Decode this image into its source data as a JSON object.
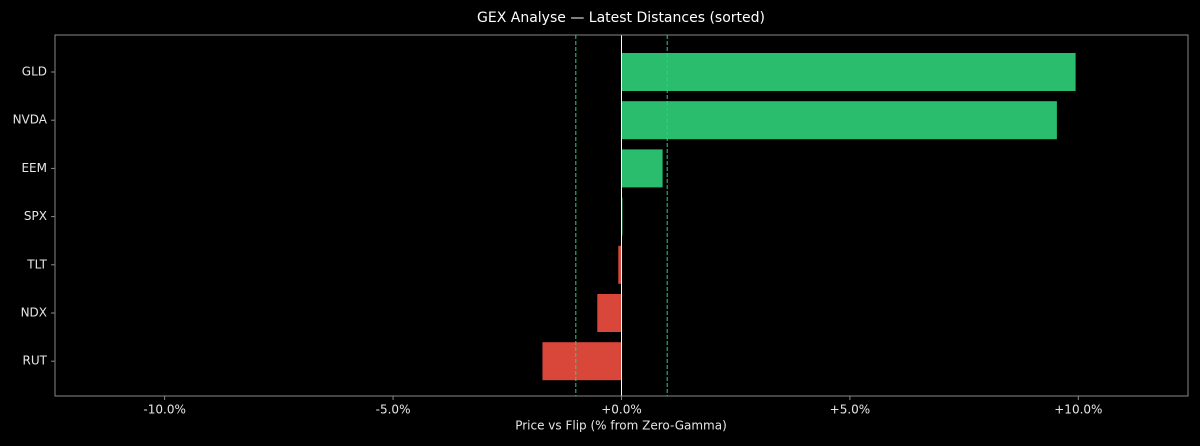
{
  "chart_data": {
    "type": "barh",
    "title": "GEX Analyse — Latest Distances (sorted)",
    "x_label": "Price vs Flip (% from Zero-Gamma)",
    "categories": [
      "GLD",
      "NVDA",
      "EEM",
      "SPX",
      "TLT",
      "NDX",
      "RUT"
    ],
    "values": [
      9.94,
      9.53,
      0.9,
      0.02,
      -0.07,
      -0.53,
      -1.73
    ],
    "positive_color": "#2bbd6e",
    "negative_color": "#d9473b",
    "xlim": [
      -12.4,
      12.4
    ],
    "xticks": [
      {
        "value": -10,
        "label": "-10.0%"
      },
      {
        "value": -5,
        "label": "-5.0%"
      },
      {
        "value": 0,
        "label": "+0.0%"
      },
      {
        "value": 5,
        "label": "+5.0%"
      },
      {
        "value": 10,
        "label": "+10.0%"
      }
    ],
    "thresholds": [
      -1,
      1
    ],
    "threshold_color": "#2bd17e",
    "zero_line": true
  }
}
